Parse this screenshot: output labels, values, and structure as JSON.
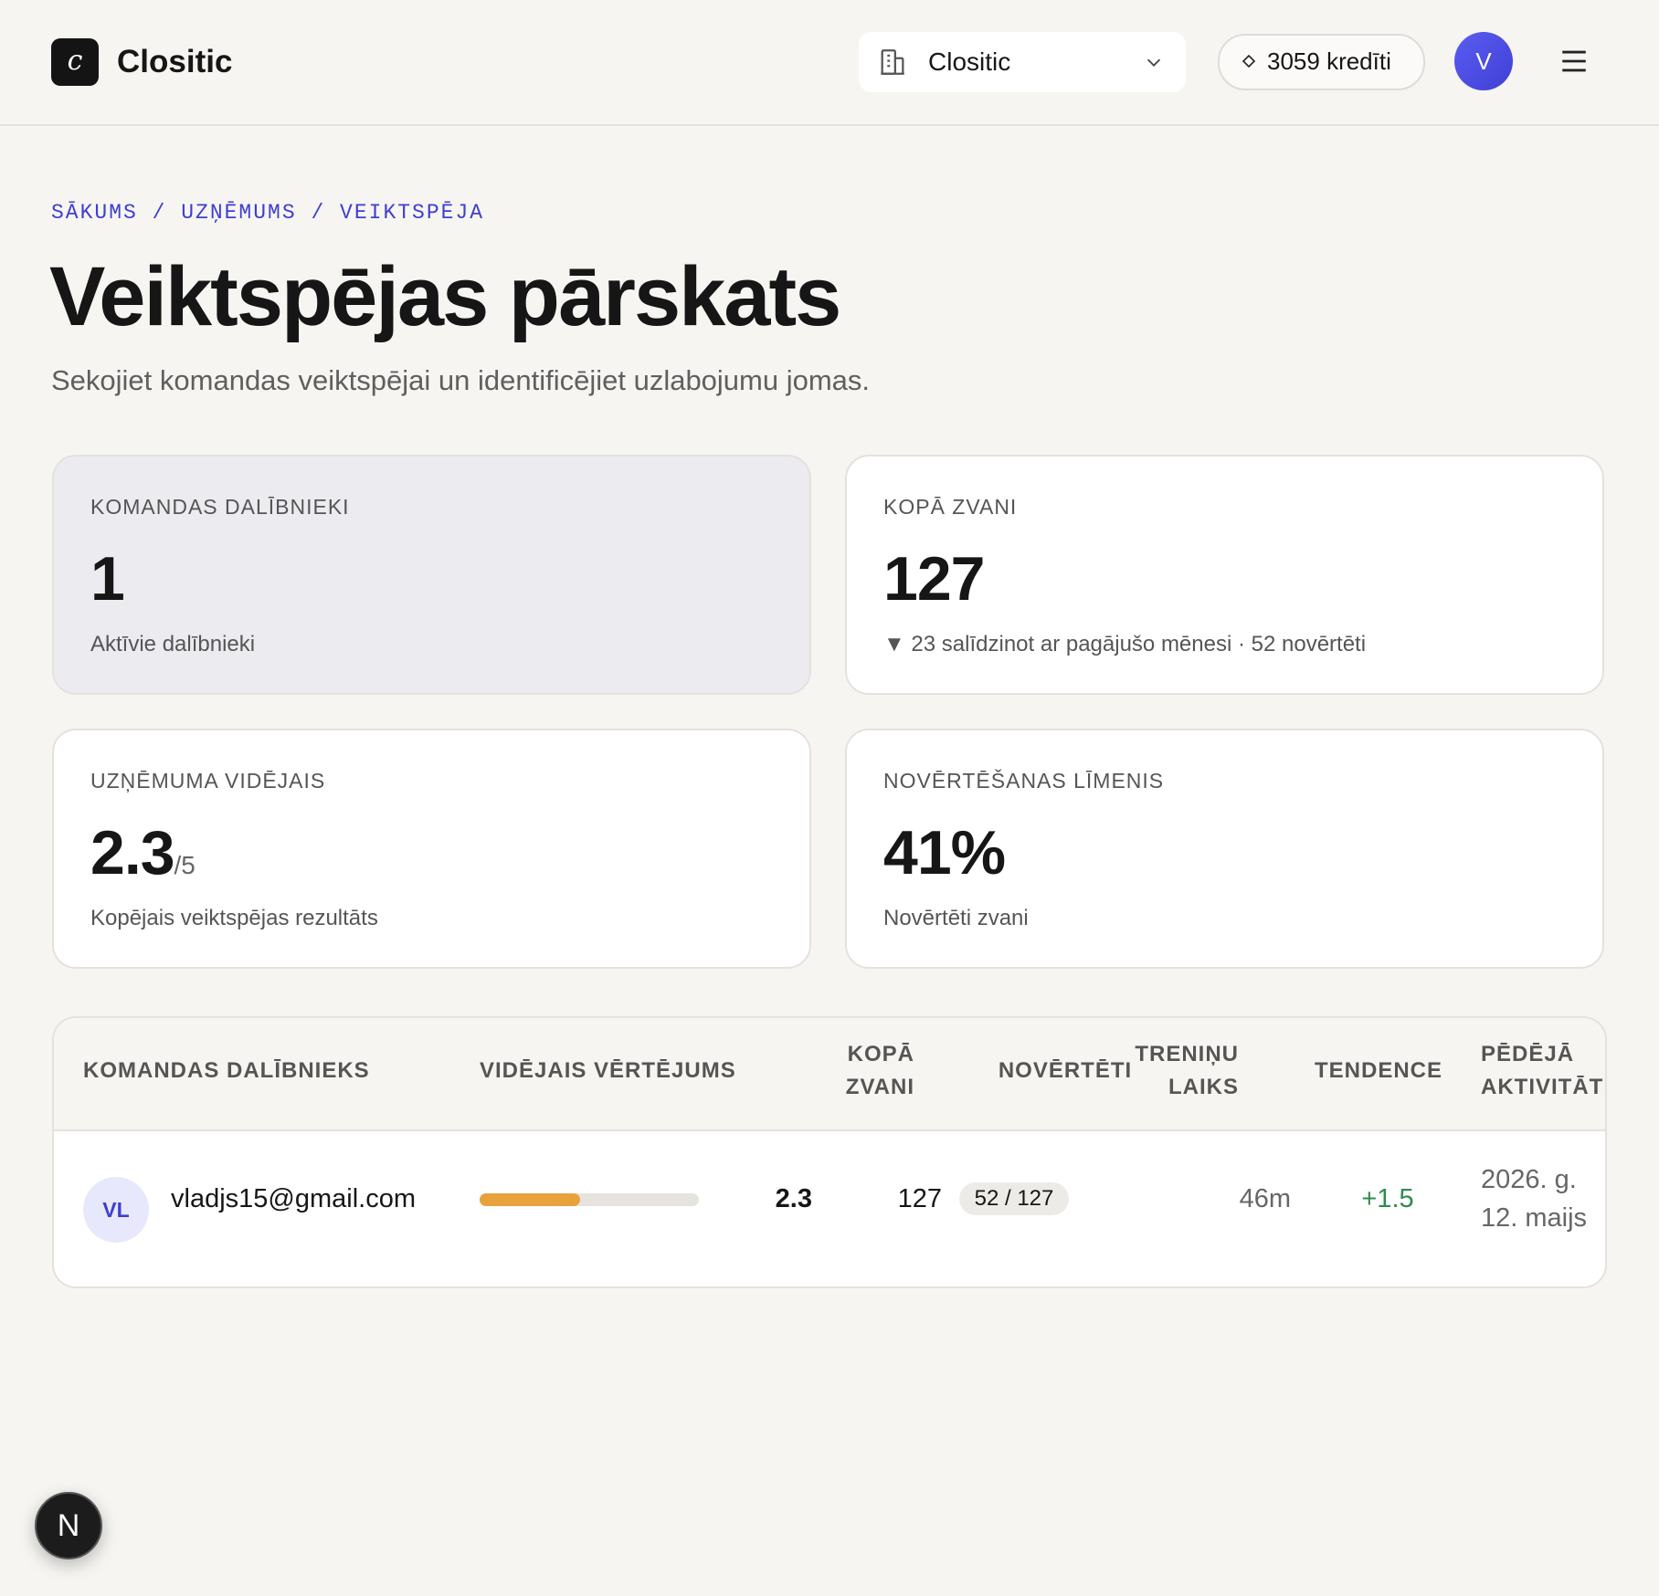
{
  "header": {
    "logo_letter": "c",
    "brand": "Clositic",
    "org_selector": "Clositic",
    "credits": "3059 kredīti",
    "avatar": "V"
  },
  "breadcrumb": "SĀKUMS / UZŅĒMUMS / VEIKTSPĒJA",
  "page": {
    "title": "Veiktspējas pārskats",
    "subtitle": "Sekojiet komandas veiktspējai un identificējiet uzlabojumu jomas."
  },
  "stats": [
    {
      "label": "KOMANDAS DALĪBNIEKI",
      "value": "1",
      "note": "Aktīvie dalībnieki"
    },
    {
      "label": "KOPĀ ZVANI",
      "value": "127",
      "note": "▼ 23 salīdzinot ar pagājušo mēnesi · 52 novērtēti"
    },
    {
      "label": "UZŅĒMUMA VIDĒJAIS",
      "value": "2.3",
      "suffix": "/5",
      "note": "Kopējais veiktspējas rezultāts"
    },
    {
      "label": "NOVĒRTĒŠANAS LĪMENIS",
      "value": "41%",
      "note": "Novērtēti zvani"
    }
  ],
  "table": {
    "columns": [
      "KOMANDAS DALĪBNIEKS",
      "VIDĒJAIS VĒRTĒJUMS",
      "KOPĀ ZVANI",
      "NOVĒRTĒTI",
      "TRENIŅU LAIKS",
      "TENDENCE",
      "PĒDĒJĀ AKTIVITĀTE"
    ],
    "rows": [
      {
        "initials": "VL",
        "email": "vladjs15@gmail.com",
        "score": "2.3",
        "calls": "127",
        "rated": "52 / 127",
        "training": "46m",
        "trend": "+1.5",
        "last_activity": "2026. g. 12. maijs"
      }
    ]
  },
  "dev_badge": "N"
}
